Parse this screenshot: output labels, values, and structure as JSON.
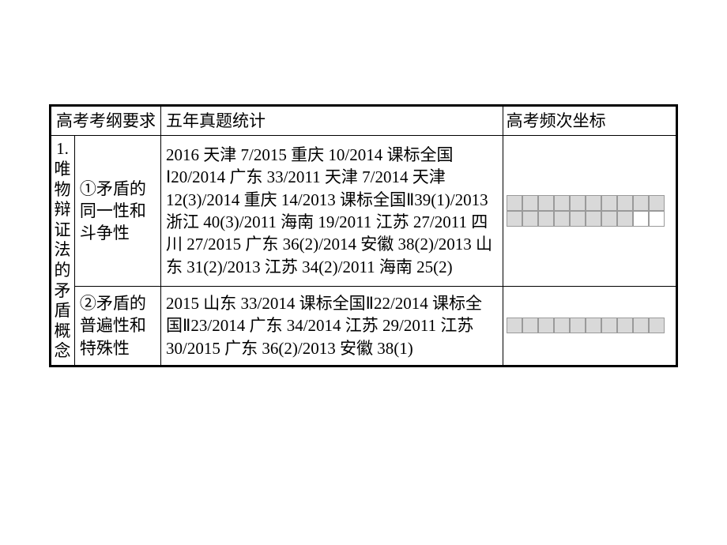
{
  "header": {
    "col1": "高考考纲要求",
    "col2": "五年真题统计",
    "col3": "高考频次坐标"
  },
  "section_index": "1.",
  "section_title_chars": [
    "唯",
    "物",
    "辩",
    "证",
    "法",
    "的",
    "矛",
    "盾",
    "概",
    "念"
  ],
  "rows": [
    {
      "sub": "①矛盾的同一性和斗争性",
      "content": "2016 天津 7/2015 重庆 10/2014 课标全国Ⅰ20/2014 广东 33/2011 天津 7/2014 天津 12(3)/2014 重庆 14/2013 课标全国Ⅱ39(1)/2013 浙江 40(3)/2011 海南 19/2011 江苏 27/2011 四川 27/2015 广东 36(2)/2014 安徽 38(2)/2013 山东 31(2)/2013 江苏 34(2)/2011 海南 25(2)",
      "freq": {
        "total": 20,
        "filled": 18
      },
      "freq_rows": 2,
      "freq_cols": 10
    },
    {
      "sub": "②矛盾的普遍性和特殊性",
      "content": "2015 山东 33/2014 课标全国Ⅱ22/2014 课标全国Ⅱ23/2014 广东 34/2014 江苏 29/2011 江苏 30/2015 广东 36(2)/2013 安徽 38(1)",
      "freq": {
        "total": 10,
        "filled": 10
      },
      "freq_rows": 1,
      "freq_cols": 10
    }
  ],
  "colors": {
    "box_border": "#9a9a9a",
    "box_fill": "#d9d9d9",
    "box_empty": "#ffffff",
    "text": "#000000",
    "border": "#000000",
    "background": "#ffffff"
  }
}
